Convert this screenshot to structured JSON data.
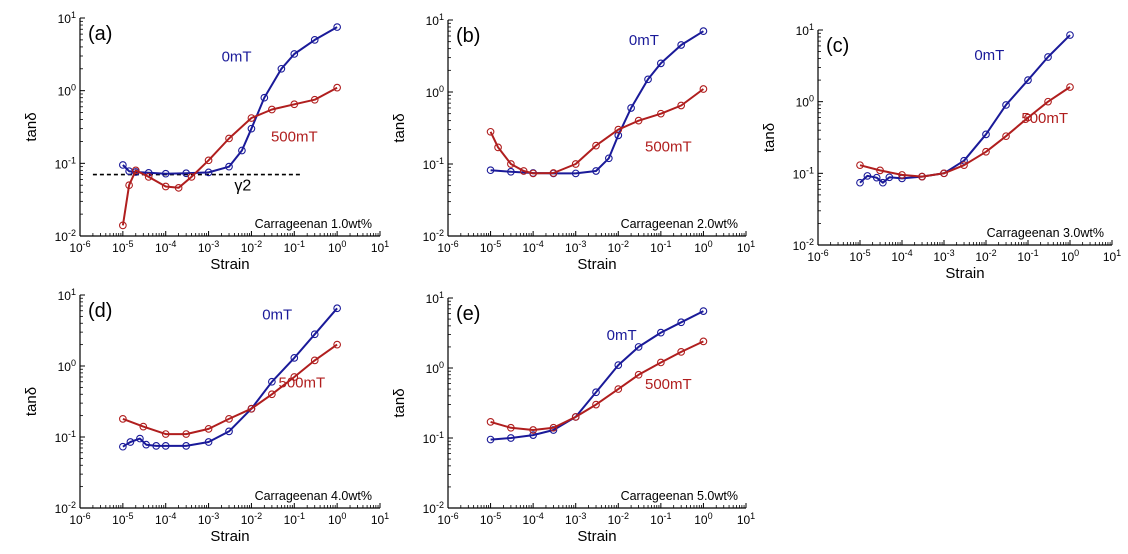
{
  "colors": {
    "series_0mT": "#1a1a99",
    "series_500mT": "#b01e1e",
    "axis": "#000000",
    "threshold": "#000000"
  },
  "chart_data": [
    {
      "type": "scatter",
      "panel_label": "(a)",
      "annotation": "Carrageenan 1.0wt%",
      "xlabel": "Strain",
      "ylabel": "tanδ",
      "xscale": "log",
      "yscale": "log",
      "xlim": [
        1e-06,
        10
      ],
      "ylim": [
        0.01,
        10
      ],
      "x_tick_labels": [
        "10-6",
        "10-5",
        "10-4",
        "10-3",
        "10-2",
        "10-1",
        "100",
        "101"
      ],
      "y_tick_labels": [
        "10-2",
        "10-1",
        "100",
        "101"
      ],
      "threshold": {
        "y": 0.07,
        "label": "γ2"
      },
      "series": [
        {
          "name": "0mT",
          "label_pos": [
            0.0045,
            2.5
          ],
          "points": [
            [
              1e-05,
              0.095
            ],
            [
              1.4e-05,
              0.078
            ],
            [
              2e-05,
              0.076
            ],
            [
              4e-05,
              0.074
            ],
            [
              0.0001,
              0.072
            ],
            [
              0.0003,
              0.073
            ],
            [
              0.001,
              0.075
            ],
            [
              0.003,
              0.09
            ],
            [
              0.006,
              0.15
            ],
            [
              0.01,
              0.3
            ],
            [
              0.02,
              0.8
            ],
            [
              0.05,
              2.0
            ],
            [
              0.1,
              3.2
            ],
            [
              0.3,
              5.0
            ],
            [
              1,
              7.5
            ]
          ]
        },
        {
          "name": "500mT",
          "label_pos": [
            0.1,
            0.2
          ],
          "points": [
            [
              1e-05,
              0.014
            ],
            [
              1.4e-05,
              0.05
            ],
            [
              2e-05,
              0.08
            ],
            [
              4e-05,
              0.065
            ],
            [
              0.0001,
              0.048
            ],
            [
              0.0002,
              0.046
            ],
            [
              0.0004,
              0.065
            ],
            [
              0.001,
              0.11
            ],
            [
              0.003,
              0.22
            ],
            [
              0.01,
              0.42
            ],
            [
              0.03,
              0.55
            ],
            [
              0.1,
              0.65
            ],
            [
              0.3,
              0.75
            ],
            [
              1,
              1.1
            ]
          ]
        }
      ]
    },
    {
      "type": "scatter",
      "panel_label": "(b)",
      "annotation": "Carrageenan 2.0wt%",
      "xlabel": "Strain",
      "ylabel": "tanδ",
      "xscale": "log",
      "yscale": "log",
      "xlim": [
        1e-06,
        10
      ],
      "ylim": [
        0.01,
        10
      ],
      "x_tick_labels": [
        "10-6",
        "10-5",
        "10-4",
        "10-3",
        "10-2",
        "10-1",
        "100",
        "101"
      ],
      "y_tick_labels": [
        "10-2",
        "10-1",
        "100",
        "101"
      ],
      "series": [
        {
          "name": "0mT",
          "label_pos": [
            0.04,
            4.5
          ],
          "points": [
            [
              1e-05,
              0.082
            ],
            [
              3e-05,
              0.078
            ],
            [
              0.0001,
              0.075
            ],
            [
              0.0003,
              0.074
            ],
            [
              0.001,
              0.074
            ],
            [
              0.003,
              0.08
            ],
            [
              0.006,
              0.12
            ],
            [
              0.01,
              0.25
            ],
            [
              0.02,
              0.6
            ],
            [
              0.05,
              1.5
            ],
            [
              0.1,
              2.5
            ],
            [
              0.3,
              4.5
            ],
            [
              1,
              7.0
            ]
          ]
        },
        {
          "name": "500mT",
          "label_pos": [
            0.15,
            0.15
          ],
          "points": [
            [
              1e-05,
              0.28
            ],
            [
              1.5e-05,
              0.17
            ],
            [
              3e-05,
              0.1
            ],
            [
              6e-05,
              0.08
            ],
            [
              0.0001,
              0.074
            ],
            [
              0.0003,
              0.075
            ],
            [
              0.001,
              0.1
            ],
            [
              0.003,
              0.18
            ],
            [
              0.01,
              0.3
            ],
            [
              0.03,
              0.4
            ],
            [
              0.1,
              0.5
            ],
            [
              0.3,
              0.65
            ],
            [
              1,
              1.1
            ]
          ]
        }
      ]
    },
    {
      "type": "scatter",
      "panel_label": "(c)",
      "annotation": "Carrageenan 3.0wt%",
      "xlabel": "Strain",
      "ylabel": "tanδ",
      "xscale": "log",
      "yscale": "log",
      "xlim": [
        1e-06,
        10
      ],
      "ylim": [
        0.01,
        10
      ],
      "x_tick_labels": [
        "10-6",
        "10-5",
        "10-4",
        "10-3",
        "10-2",
        "10-1",
        "100",
        "101"
      ],
      "y_tick_labels": [
        "10-2",
        "10-1",
        "100",
        "101"
      ],
      "series": [
        {
          "name": "0mT",
          "label_pos": [
            0.012,
            3.8
          ],
          "points": [
            [
              1e-05,
              0.074
            ],
            [
              1.5e-05,
              0.092
            ],
            [
              2.5e-05,
              0.087
            ],
            [
              3.5e-05,
              0.074
            ],
            [
              5e-05,
              0.088
            ],
            [
              0.0001,
              0.085
            ],
            [
              0.0003,
              0.09
            ],
            [
              0.001,
              0.1
            ],
            [
              0.003,
              0.15
            ],
            [
              0.01,
              0.35
            ],
            [
              0.03,
              0.9
            ],
            [
              0.1,
              2.0
            ],
            [
              0.3,
              4.2
            ],
            [
              1,
              8.5
            ]
          ]
        },
        {
          "name": "500mT",
          "label_pos": [
            0.25,
            0.5
          ],
          "points": [
            [
              1e-05,
              0.13
            ],
            [
              3e-05,
              0.11
            ],
            [
              0.0001,
              0.095
            ],
            [
              0.0003,
              0.09
            ],
            [
              0.001,
              0.1
            ],
            [
              0.003,
              0.13
            ],
            [
              0.01,
              0.2
            ],
            [
              0.03,
              0.33
            ],
            [
              0.1,
              0.6
            ],
            [
              0.3,
              1.0
            ],
            [
              1,
              1.6
            ]
          ]
        }
      ]
    },
    {
      "type": "scatter",
      "panel_label": "(d)",
      "annotation": "Carrageenan 4.0wt%",
      "xlabel": "Strain",
      "ylabel": "tanδ",
      "xscale": "log",
      "yscale": "log",
      "xlim": [
        1e-06,
        10
      ],
      "ylim": [
        0.01,
        10
      ],
      "x_tick_labels": [
        "10-6",
        "10-5",
        "10-4",
        "10-3",
        "10-2",
        "10-1",
        "100",
        "101"
      ],
      "y_tick_labels": [
        "10-2",
        "10-1",
        "100",
        "101"
      ],
      "series": [
        {
          "name": "0mT",
          "label_pos": [
            0.04,
            4.5
          ],
          "points": [
            [
              1e-05,
              0.073
            ],
            [
              1.5e-05,
              0.085
            ],
            [
              2.5e-05,
              0.095
            ],
            [
              3.5e-05,
              0.078
            ],
            [
              6e-05,
              0.075
            ],
            [
              0.0001,
              0.075
            ],
            [
              0.0003,
              0.075
            ],
            [
              0.001,
              0.085
            ],
            [
              0.003,
              0.12
            ],
            [
              0.01,
              0.25
            ],
            [
              0.03,
              0.6
            ],
            [
              0.1,
              1.3
            ],
            [
              0.3,
              2.8
            ],
            [
              1,
              6.5
            ]
          ]
        },
        {
          "name": "500mT",
          "label_pos": [
            0.15,
            0.5
          ],
          "points": [
            [
              1e-05,
              0.18
            ],
            [
              3e-05,
              0.14
            ],
            [
              0.0001,
              0.11
            ],
            [
              0.0003,
              0.11
            ],
            [
              0.001,
              0.13
            ],
            [
              0.003,
              0.18
            ],
            [
              0.01,
              0.25
            ],
            [
              0.03,
              0.4
            ],
            [
              0.1,
              0.7
            ],
            [
              0.3,
              1.2
            ],
            [
              1,
              2.0
            ]
          ]
        }
      ]
    },
    {
      "type": "scatter",
      "panel_label": "(e)",
      "annotation": "Carrageenan 5.0wt%",
      "xlabel": "Strain",
      "ylabel": "tanδ",
      "xscale": "log",
      "yscale": "log",
      "xlim": [
        1e-06,
        10
      ],
      "ylim": [
        0.01,
        10
      ],
      "x_tick_labels": [
        "10-6",
        "10-5",
        "10-4",
        "10-3",
        "10-2",
        "10-1",
        "100",
        "101"
      ],
      "y_tick_labels": [
        "10-2",
        "10-1",
        "100",
        "101"
      ],
      "series": [
        {
          "name": "0mT",
          "label_pos": [
            0.012,
            2.5
          ],
          "points": [
            [
              1e-05,
              0.095
            ],
            [
              3e-05,
              0.1
            ],
            [
              0.0001,
              0.11
            ],
            [
              0.0003,
              0.13
            ],
            [
              0.001,
              0.2
            ],
            [
              0.003,
              0.45
            ],
            [
              0.01,
              1.1
            ],
            [
              0.03,
              2.0
            ],
            [
              0.1,
              3.2
            ],
            [
              0.3,
              4.5
            ],
            [
              1,
              6.5
            ]
          ]
        },
        {
          "name": "500mT",
          "label_pos": [
            0.15,
            0.5
          ],
          "points": [
            [
              1e-05,
              0.17
            ],
            [
              3e-05,
              0.14
            ],
            [
              0.0001,
              0.13
            ],
            [
              0.0003,
              0.14
            ],
            [
              0.001,
              0.2
            ],
            [
              0.003,
              0.3
            ],
            [
              0.01,
              0.5
            ],
            [
              0.03,
              0.8
            ],
            [
              0.1,
              1.2
            ],
            [
              0.3,
              1.7
            ],
            [
              1,
              2.4
            ]
          ]
        }
      ]
    }
  ]
}
